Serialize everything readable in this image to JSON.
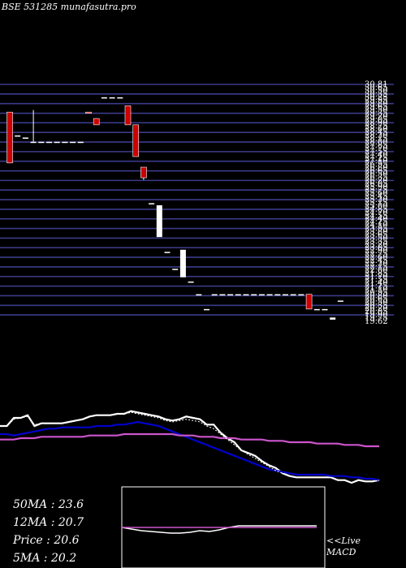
{
  "chart_data": {
    "type": "candlestick",
    "title": "BSE 531285 munafasutra.pro",
    "price_ticks": [
      "30.81",
      "30.65",
      "30.50",
      "30.35",
      "30.25",
      "29.95",
      "29.80",
      "29.65",
      "29.50",
      "29.35",
      "29.20",
      "29.05",
      "28.90",
      "28.75",
      "28.60",
      "28.45",
      "28.30",
      "28.15",
      "28.00",
      "27.85",
      "27.70",
      "27.55",
      "27.40",
      "27.25",
      "27.10",
      "26.95",
      "26.80",
      "26.65",
      "26.50",
      "26.35",
      "26.20",
      "26.05",
      "25.90",
      "25.75",
      "25.60",
      "25.45",
      "25.30",
      "25.15",
      "25.00",
      "24.85",
      "24.70",
      "24.55",
      "24.40",
      "24.25",
      "24.10",
      "23.95",
      "23.80",
      "23.65",
      "23.50",
      "23.35",
      "23.20",
      "23.05",
      "22.90",
      "22.75",
      "22.60",
      "22.45",
      "22.30",
      "22.15",
      "22.00",
      "21.85",
      "21.70",
      "21.55",
      "21.40",
      "21.25",
      "21.10",
      "20.95",
      "20.80",
      "20.65",
      "20.50",
      "20.35",
      "20.20",
      "20.05",
      "19.90",
      "19.75",
      "19.62"
    ],
    "candles": [
      {
        "o": 29.5,
        "h": 29.5,
        "l": 27.1,
        "c": 27.1,
        "color": "red"
      },
      {
        "o": 28.4,
        "h": 28.4,
        "l": 28.4,
        "c": 28.4,
        "color": "white"
      },
      {
        "o": 28.3,
        "h": 28.3,
        "l": 28.3,
        "c": 28.3,
        "color": "white"
      },
      {
        "o": 28.1,
        "h": 29.6,
        "l": 28.1,
        "c": 28.1,
        "color": "white"
      },
      {
        "o": 28.1,
        "h": 28.1,
        "l": 28.1,
        "c": 28.1,
        "color": "white"
      },
      {
        "o": 28.1,
        "h": 28.1,
        "l": 28.1,
        "c": 28.1,
        "color": "white"
      },
      {
        "o": 28.1,
        "h": 28.1,
        "l": 28.1,
        "c": 28.1,
        "color": "white"
      },
      {
        "o": 28.1,
        "h": 28.1,
        "l": 28.1,
        "c": 28.1,
        "color": "white"
      },
      {
        "o": 28.1,
        "h": 28.1,
        "l": 28.1,
        "c": 28.1,
        "color": "white"
      },
      {
        "o": 28.1,
        "h": 28.1,
        "l": 28.1,
        "c": 28.1,
        "color": "white"
      },
      {
        "o": 29.5,
        "h": 29.5,
        "l": 29.5,
        "c": 29.5,
        "color": "red"
      },
      {
        "o": 29.2,
        "h": 29.2,
        "l": 28.9,
        "c": 28.9,
        "color": "red"
      },
      {
        "o": 30.2,
        "h": 30.2,
        "l": 30.2,
        "c": 30.2,
        "color": "white"
      },
      {
        "o": 30.2,
        "h": 30.2,
        "l": 30.2,
        "c": 30.2,
        "color": "white"
      },
      {
        "o": 30.2,
        "h": 30.2,
        "l": 30.2,
        "c": 30.2,
        "color": "white"
      },
      {
        "o": 29.8,
        "h": 29.8,
        "l": 28.9,
        "c": 28.9,
        "color": "red"
      },
      {
        "o": 28.9,
        "h": 28.9,
        "l": 27.4,
        "c": 27.4,
        "color": "red"
      },
      {
        "o": 26.9,
        "h": 26.9,
        "l": 26.3,
        "c": 26.4,
        "color": "red"
      },
      {
        "o": 25.2,
        "h": 25.2,
        "l": 25.2,
        "c": 25.2,
        "color": "white"
      },
      {
        "o": 25.1,
        "h": 25.1,
        "l": 23.6,
        "c": 23.6,
        "color": "white"
      },
      {
        "o": 22.9,
        "h": 22.9,
        "l": 22.9,
        "c": 22.9,
        "color": "white"
      },
      {
        "o": 22.1,
        "h": 22.1,
        "l": 22.1,
        "c": 22.1,
        "color": "white"
      },
      {
        "o": 21.7,
        "h": 23.0,
        "l": 21.7,
        "c": 23.0,
        "color": "white"
      },
      {
        "o": 21.5,
        "h": 21.5,
        "l": 21.5,
        "c": 21.5,
        "color": "white"
      },
      {
        "o": 20.9,
        "h": 20.9,
        "l": 20.9,
        "c": 20.9,
        "color": "white"
      },
      {
        "o": 20.2,
        "h": 20.2,
        "l": 20.2,
        "c": 20.2,
        "color": "white"
      },
      {
        "o": 20.9,
        "h": 20.9,
        "l": 20.9,
        "c": 20.9,
        "color": "white"
      },
      {
        "o": 20.9,
        "h": 20.9,
        "l": 20.9,
        "c": 20.9,
        "color": "white"
      },
      {
        "o": 20.9,
        "h": 20.9,
        "l": 20.9,
        "c": 20.9,
        "color": "white"
      },
      {
        "o": 20.9,
        "h": 20.9,
        "l": 20.9,
        "c": 20.9,
        "color": "white"
      },
      {
        "o": 20.9,
        "h": 20.9,
        "l": 20.9,
        "c": 20.9,
        "color": "white"
      },
      {
        "o": 20.9,
        "h": 20.9,
        "l": 20.9,
        "c": 20.9,
        "color": "white"
      },
      {
        "o": 20.9,
        "h": 20.9,
        "l": 20.9,
        "c": 20.9,
        "color": "white"
      },
      {
        "o": 20.9,
        "h": 20.9,
        "l": 20.9,
        "c": 20.9,
        "color": "white"
      },
      {
        "o": 20.9,
        "h": 20.9,
        "l": 20.9,
        "c": 20.9,
        "color": "white"
      },
      {
        "o": 20.9,
        "h": 20.9,
        "l": 20.9,
        "c": 20.9,
        "color": "white"
      },
      {
        "o": 20.9,
        "h": 20.9,
        "l": 20.9,
        "c": 20.9,
        "color": "white"
      },
      {
        "o": 20.9,
        "h": 20.9,
        "l": 20.9,
        "c": 20.9,
        "color": "white"
      },
      {
        "o": 20.9,
        "h": 20.9,
        "l": 20.2,
        "c": 20.2,
        "color": "red"
      },
      {
        "o": 20.2,
        "h": 20.2,
        "l": 20.2,
        "c": 20.2,
        "color": "white"
      },
      {
        "o": 20.2,
        "h": 20.2,
        "l": 20.2,
        "c": 20.2,
        "color": "white"
      },
      {
        "o": 19.8,
        "h": 19.8,
        "l": 19.7,
        "c": 19.7,
        "color": "white"
      },
      {
        "o": 20.6,
        "h": 20.6,
        "l": 20.6,
        "c": 20.6,
        "color": "white"
      }
    ],
    "indicator_lines": [
      {
        "color": "#ffffff",
        "values": [
          88,
          88,
          94,
          94,
          96,
          88,
          90,
          90,
          90,
          90,
          91,
          92,
          93,
          95,
          96,
          96,
          96,
          97,
          97,
          99,
          98,
          97,
          96,
          95,
          93,
          92,
          93,
          95,
          94,
          93,
          89,
          89,
          83,
          79,
          76,
          70,
          68,
          66,
          62,
          59,
          57,
          53,
          51,
          50,
          50,
          50,
          50,
          50,
          50,
          48,
          48,
          46,
          48,
          47,
          47,
          48
        ]
      },
      {
        "color": "#0000cc",
        "values": [
          82,
          82,
          81,
          82,
          83,
          84,
          85,
          86,
          86,
          87,
          87,
          87,
          87,
          87,
          88,
          88,
          88,
          89,
          89,
          90,
          91,
          90,
          89,
          88,
          86,
          84,
          82,
          80,
          78,
          76,
          74,
          72,
          70,
          68,
          66,
          64,
          62,
          60,
          58,
          56,
          55,
          54,
          53,
          52,
          52,
          52,
          52,
          52,
          51,
          51,
          51,
          50,
          50,
          49,
          49,
          48
        ]
      },
      {
        "color": "#cc55cc",
        "values": [
          78,
          78,
          78,
          79,
          79,
          79,
          80,
          80,
          80,
          80,
          80,
          80,
          80,
          81,
          81,
          81,
          81,
          81,
          82,
          82,
          82,
          82,
          82,
          82,
          82,
          82,
          81,
          81,
          81,
          80,
          80,
          80,
          79,
          79,
          79,
          78,
          78,
          78,
          78,
          77,
          77,
          77,
          76,
          76,
          76,
          76,
          75,
          75,
          75,
          75,
          74,
          74,
          74,
          73,
          73,
          73
        ]
      },
      {
        "color": "#ffffff",
        "dashed": true,
        "values": [
          88,
          88,
          93,
          94,
          95,
          89,
          90,
          90,
          90,
          90,
          91,
          92,
          93,
          95,
          96,
          96,
          96,
          97,
          97,
          98,
          97,
          96,
          95,
          94,
          92,
          91,
          92,
          93,
          92,
          91,
          88,
          86,
          82,
          78,
          74,
          70,
          67,
          64,
          61,
          58,
          55,
          53,
          51,
          50,
          50,
          50,
          50,
          50,
          50,
          48,
          48,
          46,
          48,
          47,
          47,
          48
        ]
      }
    ],
    "ma_labels": [
      "50MA : 23.6",
      "12MA : 20.7",
      "Price   : 20.6",
      "5MA : 20.2"
    ],
    "macd_label": "<<Live MACD",
    "macd_lines": [
      {
        "color": "#ffffff",
        "values": [
          50,
          48,
          46,
          45,
          44,
          43,
          43,
          44,
          46,
          45,
          47,
          50,
          52,
          52,
          52,
          52,
          52,
          52,
          52,
          52,
          52
        ]
      },
      {
        "color": "#cc55cc",
        "values": [
          50,
          50,
          50,
          50,
          50,
          50,
          50,
          50,
          50,
          50,
          50,
          50,
          50,
          50,
          50,
          50,
          50,
          50,
          50,
          50,
          50
        ]
      }
    ]
  }
}
